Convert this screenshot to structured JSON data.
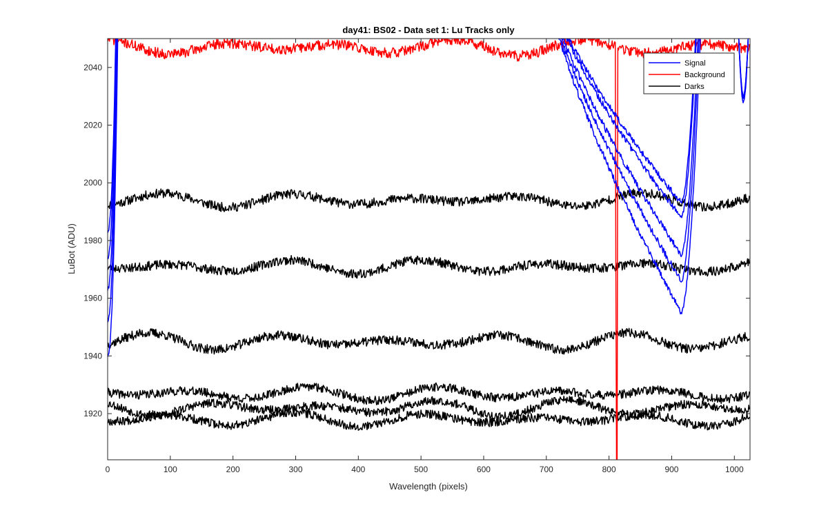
{
  "chart_data": {
    "type": "line",
    "title": "day41: BS02 - Data set 1: Lu Tracks only",
    "xlabel": "Wavelength (pixels)",
    "ylabel": "LuBot (ADU)",
    "xlim": [
      0,
      1025
    ],
    "ylim": [
      1904,
      2050
    ],
    "xticks": [
      0,
      100,
      200,
      300,
      400,
      500,
      600,
      700,
      800,
      900,
      1000
    ],
    "yticks": [
      1920,
      1940,
      1960,
      1980,
      2000,
      2020,
      2040
    ],
    "xtick_labels": [
      "0",
      "100",
      "200",
      "300",
      "400",
      "500",
      "600",
      "700",
      "800",
      "900",
      "1000"
    ],
    "ytick_labels": [
      "1920",
      "1940",
      "1960",
      "1980",
      "2000",
      "2020",
      "2040"
    ],
    "grid": false,
    "legend_position": "top-right",
    "legend": [
      {
        "label": "Signal",
        "color": "#0000ff"
      },
      {
        "label": "Background",
        "color": "#ff0000"
      },
      {
        "label": "Darks",
        "color": "#000000"
      }
    ],
    "colors": {
      "signal": "#0000ff",
      "background": "#ff0000",
      "darks": "#000000"
    },
    "series": [
      {
        "group": "darks",
        "baseline": 1994,
        "amplitude": 2.5,
        "noise": 1.6,
        "seed": 11
      },
      {
        "group": "darks",
        "baseline": 1971,
        "amplitude": 2.5,
        "noise": 1.6,
        "seed": 23
      },
      {
        "group": "darks",
        "baseline": 1945,
        "amplitude": 3.0,
        "noise": 1.6,
        "seed": 37
      },
      {
        "group": "darks",
        "baseline": 1927,
        "amplitude": 2.5,
        "noise": 1.5,
        "seed": 41
      },
      {
        "group": "darks",
        "baseline": 1922,
        "amplitude": 3.0,
        "noise": 1.5,
        "seed": 53
      },
      {
        "group": "darks",
        "baseline": 1918,
        "amplitude": 2.5,
        "noise": 1.5,
        "seed": 67
      },
      {
        "group": "background",
        "baseline": 2047,
        "amplitude": 3.0,
        "noise": 1.8,
        "seed": 71,
        "spike_x": 811,
        "spike_low": 1904,
        "spike_high": 1966
      },
      {
        "group": "signal",
        "left_start": 1952,
        "right_dip_min": 1993,
        "seed": 101
      },
      {
        "group": "signal",
        "left_start": 1940,
        "right_dip_min": 1988,
        "seed": 103
      },
      {
        "group": "signal",
        "left_start": 1963,
        "right_dip_min": 1975,
        "seed": 107
      },
      {
        "group": "signal",
        "left_start": 1974,
        "right_dip_min": 1966,
        "seed": 109
      },
      {
        "group": "signal",
        "left_start": 1983,
        "right_dip_min": 1955,
        "seed": 113
      }
    ]
  }
}
